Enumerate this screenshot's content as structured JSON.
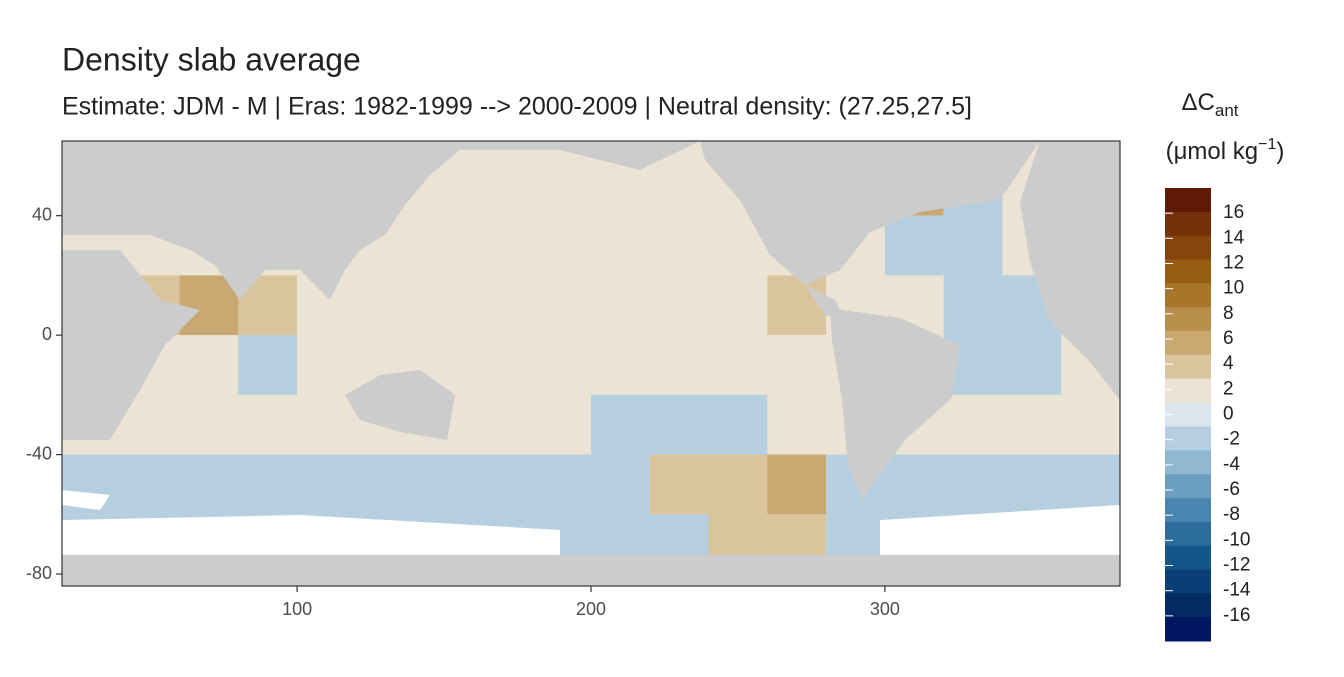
{
  "chart_data": {
    "type": "raster-map",
    "title": "Density slab average",
    "subtitle": "Estimate: JDM - M | Eras: 1982-1999 --> 2000-2009 | Neutral density: (27.25,27.5]",
    "xlim": [
      20,
      380
    ],
    "ylim": [
      -84,
      65
    ],
    "xticks": [
      100,
      200,
      300
    ],
    "yticks": [
      -80,
      -40,
      0,
      40
    ],
    "cells": {
      "lon_edges": [
        20,
        40,
        60,
        80,
        100,
        120,
        140,
        160,
        180,
        200,
        220,
        240,
        260,
        280,
        300,
        320,
        340,
        360,
        380
      ],
      "lat_edges": [
        65,
        40,
        20,
        0,
        -20,
        -40,
        -60,
        -84
      ],
      "values": [
        [
          1,
          1,
          1,
          1,
          1,
          1,
          1,
          1,
          1,
          1,
          1,
          1,
          1,
          8,
          6,
          -1,
          1,
          1
        ],
        [
          1,
          1,
          1,
          1,
          1,
          1,
          1,
          1,
          1,
          1,
          1,
          1,
          1,
          1,
          -1,
          -1,
          1,
          1
        ],
        [
          1,
          3,
          5,
          3,
          1,
          1,
          1,
          1,
          1,
          1,
          1,
          1,
          3,
          1,
          1,
          -1,
          -1,
          1
        ],
        [
          1,
          1,
          1,
          -1,
          1,
          1,
          1,
          1,
          1,
          1,
          1,
          1,
          1,
          1,
          1,
          -1,
          -1,
          1
        ],
        [
          1,
          1,
          1,
          1,
          1,
          1,
          1,
          1,
          1,
          -1,
          -1,
          -1,
          1,
          1,
          1,
          1,
          1,
          1
        ],
        [
          -2,
          -2,
          -2,
          -2,
          -2,
          -2,
          -1,
          -1,
          -2,
          -2,
          3,
          3,
          5,
          -1,
          -1,
          -1,
          -1,
          -1
        ],
        [
          -1,
          -1,
          -1,
          -1,
          -1,
          -1,
          -1,
          -1,
          -1,
          -1,
          -1,
          4,
          4,
          -1,
          -1,
          -1,
          -1,
          -1
        ]
      ]
    },
    "legend": {
      "title": "ΔC",
      "title_subscript": "ant",
      "unit": "(μmol kg",
      "unit_superscript": "−1",
      "unit_close": ")",
      "lim": [
        -18,
        18
      ],
      "ticks": [
        16,
        14,
        12,
        10,
        8,
        6,
        4,
        2,
        0,
        -2,
        -4,
        -6,
        -8,
        -10,
        -12,
        -14,
        -16
      ],
      "colors": [
        "#5e1a04",
        "#733009",
        "#86460b",
        "#975d12",
        "#a8762b",
        "#b98f4c",
        "#c9a871",
        "#dac49d",
        "#ebe3d3",
        "#dce6ec",
        "#b6cfe0",
        "#91b8d1",
        "#6b9fc1",
        "#4a86b0",
        "#2c6d9d",
        "#155689",
        "#093f74",
        "#032a63",
        "#001660"
      ]
    }
  }
}
